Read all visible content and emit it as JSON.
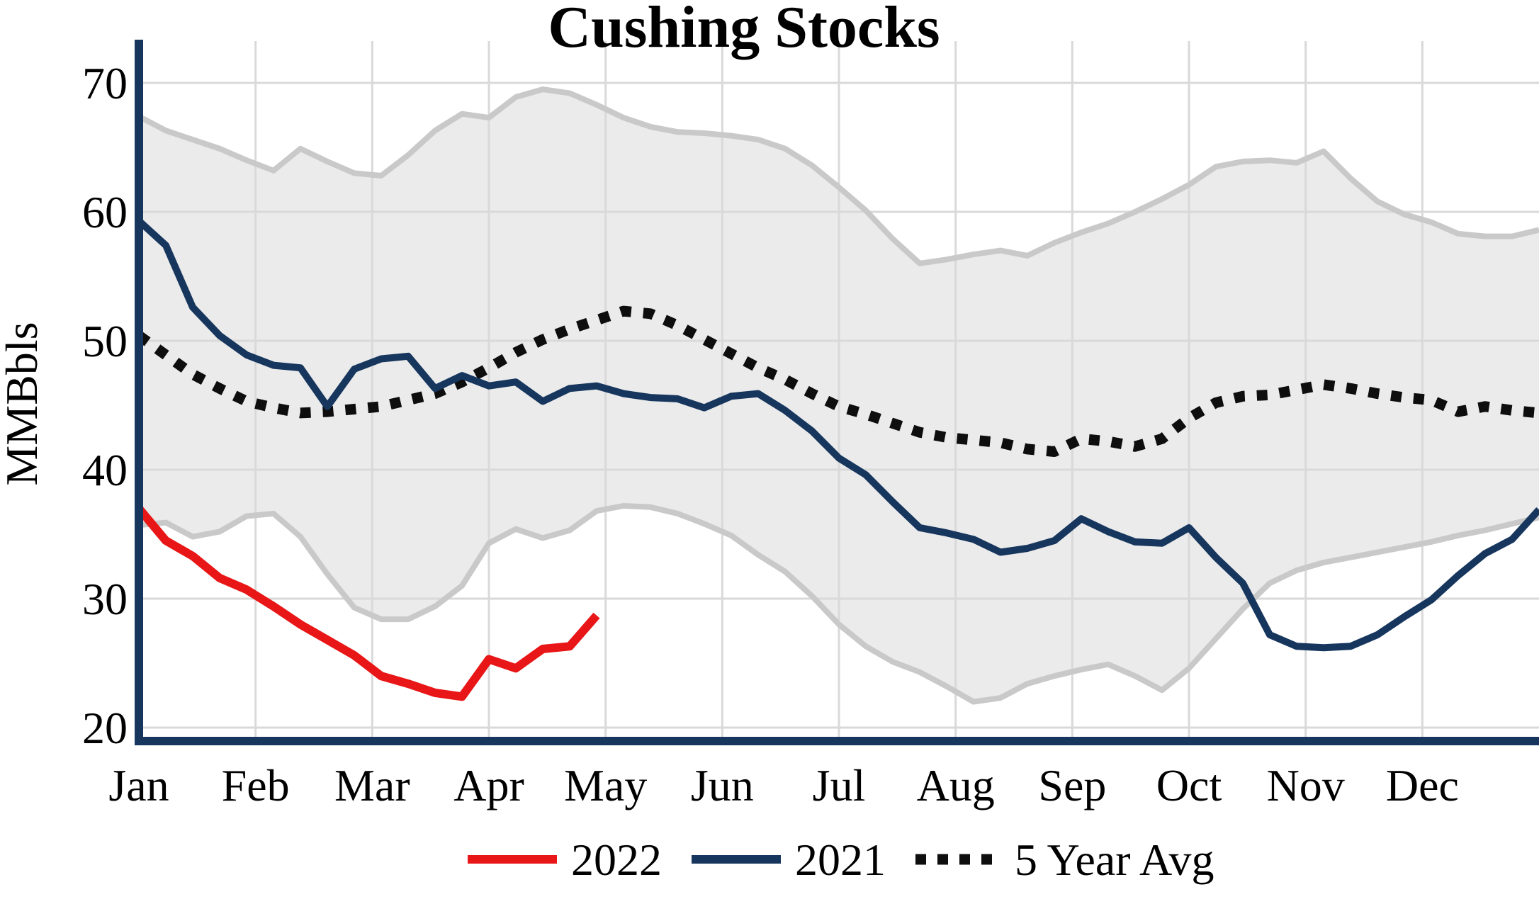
{
  "title": "Cushing Stocks",
  "y_axis": {
    "label": "MMBbls",
    "ticks": [
      20,
      30,
      40,
      50,
      60,
      70
    ],
    "min": 20,
    "max": 70
  },
  "x_axis": {
    "months": [
      "Jan",
      "Feb",
      "Mar",
      "Apr",
      "May",
      "Jun",
      "Jul",
      "Aug",
      "Sep",
      "Oct",
      "Nov",
      "Dec"
    ]
  },
  "legend": {
    "items": [
      {
        "label": "2022",
        "color": "#E81616",
        "style": "solid"
      },
      {
        "label": "2021",
        "color": "#17365D",
        "style": "solid"
      },
      {
        "label": "5 Year Avg",
        "color": "#0E0E0E",
        "style": "dotted"
      }
    ]
  },
  "colors": {
    "red_2022": "#E81616",
    "navy_2021": "#17365D",
    "dotted_avg": "#0E0E0E",
    "band_fill": "#EBEBEB",
    "band_edge": "#C9C9C9",
    "gridline": "#D9D9D9",
    "axis": "#17365D"
  },
  "chart_data": {
    "type": "line",
    "title": "Cushing Stocks",
    "xlabel": "",
    "ylabel": "MMBbls",
    "ylim": [
      20,
      70
    ],
    "x_unit": "weeks (Jan 1 to Dec 31, 52 weeks)",
    "grid": true,
    "legend_position": "bottom",
    "series": [
      {
        "name": "2022",
        "style": "solid",
        "color": "#E81616",
        "start_week": 0,
        "values": [
          37.0,
          34.5,
          33.3,
          31.6,
          30.7,
          29.4,
          28.0,
          26.8,
          25.6,
          24.0,
          23.4,
          22.7,
          22.4,
          25.3,
          24.6,
          26.1,
          26.3,
          28.7
        ]
      },
      {
        "name": "2021",
        "style": "solid",
        "color": "#17365D",
        "start_week": 0,
        "values": [
          59.3,
          57.4,
          52.6,
          50.4,
          48.9,
          48.1,
          47.9,
          44.9,
          47.8,
          48.6,
          48.8,
          46.3,
          47.3,
          46.5,
          46.8,
          45.3,
          46.3,
          46.5,
          45.9,
          45.6,
          45.5,
          44.8,
          45.7,
          45.9,
          44.6,
          43.0,
          40.9,
          39.6,
          37.5,
          35.5,
          35.1,
          34.6,
          33.6,
          33.9,
          34.5,
          36.2,
          35.2,
          34.4,
          34.3,
          35.5,
          33.2,
          31.2,
          27.2,
          26.3,
          26.2,
          26.3,
          27.2,
          28.6,
          29.9,
          31.8,
          33.5,
          34.6,
          36.9
        ]
      },
      {
        "name": "5 Year Avg",
        "style": "dotted",
        "color": "#0E0E0E",
        "start_week": 0,
        "values": [
          50.4,
          48.9,
          47.4,
          46.3,
          45.3,
          44.8,
          44.4,
          44.5,
          44.7,
          44.9,
          45.4,
          45.9,
          46.8,
          47.9,
          49.1,
          50.1,
          50.9,
          51.6,
          52.3,
          52.1,
          51.2,
          50.1,
          49.0,
          47.9,
          47.0,
          45.9,
          44.9,
          44.3,
          43.6,
          42.9,
          42.5,
          42.3,
          42.1,
          41.6,
          41.4,
          42.4,
          42.2,
          41.8,
          42.4,
          44.0,
          45.2,
          45.7,
          45.8,
          46.2,
          46.6,
          46.3,
          45.9,
          45.6,
          45.4,
          44.5,
          44.9,
          44.6,
          44.4
        ]
      }
    ],
    "band": {
      "name": "5 Year Range",
      "fill": "#EBEBEB",
      "edge_color": "#C9C9C9",
      "top": [
        67.4,
        66.3,
        65.6,
        64.9,
        64.0,
        63.2,
        64.9,
        63.9,
        63.0,
        62.8,
        64.4,
        66.3,
        67.6,
        67.3,
        68.9,
        69.5,
        69.2,
        68.3,
        67.3,
        66.6,
        66.2,
        66.1,
        65.9,
        65.6,
        64.9,
        63.6,
        61.9,
        60.1,
        57.9,
        56.0,
        56.3,
        56.7,
        57.0,
        56.6,
        57.6,
        58.4,
        59.1,
        60.0,
        61.0,
        62.1,
        63.5,
        63.9,
        64.0,
        63.8,
        64.7,
        62.6,
        60.8,
        59.8,
        59.2,
        58.3,
        58.1,
        58.1,
        58.6
      ],
      "bottom": [
        35.7,
        35.9,
        34.8,
        35.2,
        36.4,
        36.6,
        34.8,
        31.9,
        29.3,
        28.4,
        28.4,
        29.4,
        31.0,
        34.3,
        35.4,
        34.7,
        35.3,
        36.8,
        37.2,
        37.1,
        36.6,
        35.8,
        34.9,
        33.4,
        32.1,
        30.2,
        28.0,
        26.3,
        25.1,
        24.3,
        23.2,
        22.0,
        22.3,
        23.4,
        24.0,
        24.5,
        24.9,
        24.0,
        22.9,
        24.6,
        26.9,
        29.2,
        31.2,
        32.2,
        32.8,
        33.2,
        33.6,
        34.0,
        34.4,
        34.9,
        35.3,
        35.8,
        36.3
      ]
    }
  }
}
